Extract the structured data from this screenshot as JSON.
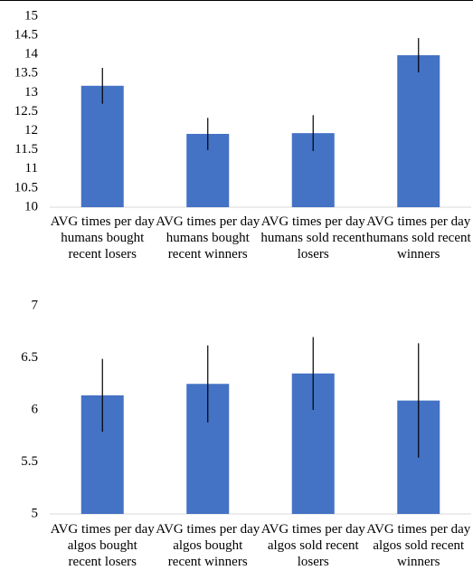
{
  "chart_data": [
    {
      "type": "bar",
      "categories": [
        "AVG times per day humans bought recent losers",
        "AVG times per day humans bought recent winners",
        "AVG times per day humans sold recent losers",
        "AVG times per day humans sold recent winners"
      ],
      "values": [
        13.18,
        11.92,
        11.94,
        13.98
      ],
      "errors": [
        0.47,
        0.42,
        0.47,
        0.45
      ],
      "color": "#4472c4",
      "ylim": [
        10,
        15
      ],
      "yticks": [
        10,
        10.5,
        11,
        11.5,
        12,
        12.5,
        13,
        13.5,
        14,
        14.5,
        15
      ]
    },
    {
      "type": "bar",
      "categories": [
        "AVG times per day algos bought recent losers",
        "AVG times per day algos bought recent winners",
        "AVG times per day algos sold recent losers",
        "AVG times per day algos sold recent winners"
      ],
      "values": [
        6.14,
        6.25,
        6.35,
        6.09
      ],
      "errors": [
        0.35,
        0.37,
        0.35,
        0.55
      ],
      "color": "#4472c4",
      "ylim": [
        5,
        7
      ],
      "yticks": [
        5,
        5.5,
        6,
        6.5,
        7
      ]
    }
  ]
}
